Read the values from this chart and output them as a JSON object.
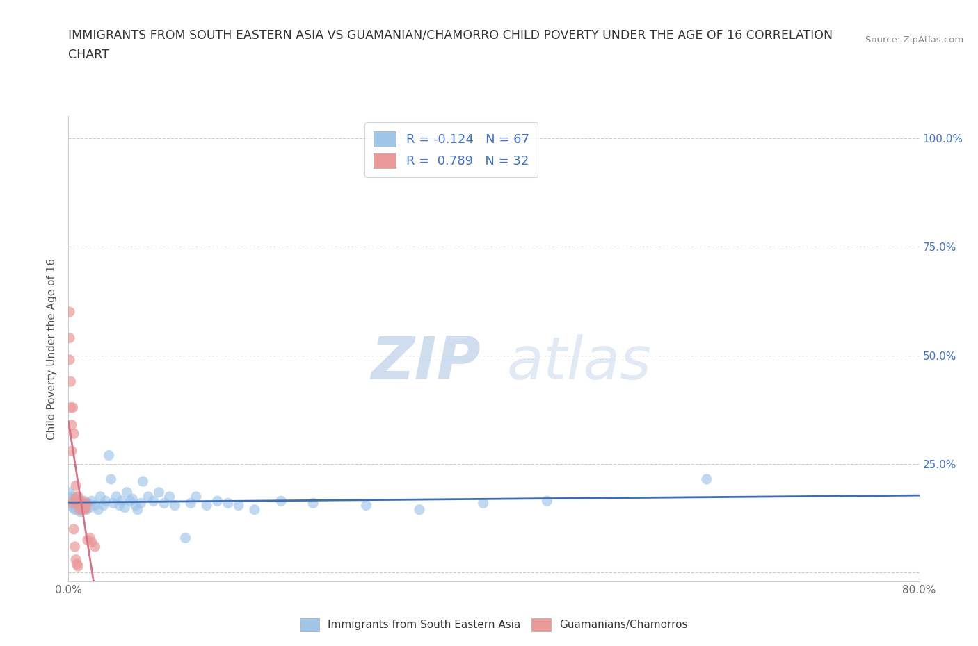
{
  "title_line1": "IMMIGRANTS FROM SOUTH EASTERN ASIA VS GUAMANIAN/CHAMORRO CHILD POVERTY UNDER THE AGE OF 16 CORRELATION",
  "title_line2": "CHART",
  "source": "Source: ZipAtlas.com",
  "ylabel": "Child Poverty Under the Age of 16",
  "xlim": [
    0.0,
    0.8
  ],
  "ylim": [
    -0.02,
    1.05
  ],
  "xticks": [
    0.0,
    0.1,
    0.2,
    0.3,
    0.4,
    0.5,
    0.6,
    0.7,
    0.8
  ],
  "xticklabels": [
    "0.0%",
    "",
    "",
    "",
    "",
    "",
    "",
    "",
    "80.0%"
  ],
  "yticks": [
    0.0,
    0.25,
    0.5,
    0.75,
    1.0
  ],
  "R_blue": -0.124,
  "N_blue": 67,
  "R_pink": 0.789,
  "N_pink": 32,
  "blue_color": "#9fc5e8",
  "pink_color": "#ea9999",
  "blue_line_color": "#3d6eb4",
  "pink_line_color": "#d4728a",
  "blue_scatter": [
    [
      0.001,
      0.185
    ],
    [
      0.002,
      0.17
    ],
    [
      0.002,
      0.155
    ],
    [
      0.003,
      0.165
    ],
    [
      0.003,
      0.175
    ],
    [
      0.004,
      0.15
    ],
    [
      0.004,
      0.16
    ],
    [
      0.005,
      0.155
    ],
    [
      0.005,
      0.17
    ],
    [
      0.006,
      0.165
    ],
    [
      0.006,
      0.145
    ],
    [
      0.007,
      0.175
    ],
    [
      0.007,
      0.155
    ],
    [
      0.008,
      0.16
    ],
    [
      0.008,
      0.145
    ],
    [
      0.009,
      0.15
    ],
    [
      0.01,
      0.165
    ],
    [
      0.011,
      0.14
    ],
    [
      0.012,
      0.155
    ],
    [
      0.013,
      0.16
    ],
    [
      0.014,
      0.15
    ],
    [
      0.015,
      0.165
    ],
    [
      0.016,
      0.155
    ],
    [
      0.017,
      0.145
    ],
    [
      0.018,
      0.16
    ],
    [
      0.02,
      0.15
    ],
    [
      0.022,
      0.165
    ],
    [
      0.025,
      0.155
    ],
    [
      0.028,
      0.145
    ],
    [
      0.03,
      0.175
    ],
    [
      0.033,
      0.155
    ],
    [
      0.035,
      0.165
    ],
    [
      0.038,
      0.27
    ],
    [
      0.04,
      0.215
    ],
    [
      0.042,
      0.16
    ],
    [
      0.045,
      0.175
    ],
    [
      0.048,
      0.155
    ],
    [
      0.05,
      0.165
    ],
    [
      0.053,
      0.15
    ],
    [
      0.055,
      0.185
    ],
    [
      0.058,
      0.165
    ],
    [
      0.06,
      0.17
    ],
    [
      0.063,
      0.155
    ],
    [
      0.065,
      0.145
    ],
    [
      0.068,
      0.16
    ],
    [
      0.07,
      0.21
    ],
    [
      0.075,
      0.175
    ],
    [
      0.08,
      0.165
    ],
    [
      0.085,
      0.185
    ],
    [
      0.09,
      0.16
    ],
    [
      0.095,
      0.175
    ],
    [
      0.1,
      0.155
    ],
    [
      0.11,
      0.08
    ],
    [
      0.115,
      0.16
    ],
    [
      0.12,
      0.175
    ],
    [
      0.13,
      0.155
    ],
    [
      0.14,
      0.165
    ],
    [
      0.15,
      0.16
    ],
    [
      0.16,
      0.155
    ],
    [
      0.175,
      0.145
    ],
    [
      0.2,
      0.165
    ],
    [
      0.23,
      0.16
    ],
    [
      0.28,
      0.155
    ],
    [
      0.33,
      0.145
    ],
    [
      0.39,
      0.16
    ],
    [
      0.45,
      0.165
    ],
    [
      0.6,
      0.215
    ]
  ],
  "pink_scatter": [
    [
      0.001,
      0.6
    ],
    [
      0.001,
      0.54
    ],
    [
      0.001,
      0.49
    ],
    [
      0.002,
      0.44
    ],
    [
      0.002,
      0.38
    ],
    [
      0.003,
      0.34
    ],
    [
      0.003,
      0.28
    ],
    [
      0.004,
      0.38
    ],
    [
      0.004,
      0.16
    ],
    [
      0.005,
      0.32
    ],
    [
      0.005,
      0.1
    ],
    [
      0.006,
      0.17
    ],
    [
      0.006,
      0.06
    ],
    [
      0.007,
      0.2
    ],
    [
      0.007,
      0.03
    ],
    [
      0.008,
      0.16
    ],
    [
      0.008,
      0.02
    ],
    [
      0.009,
      0.175
    ],
    [
      0.009,
      0.015
    ],
    [
      0.01,
      0.155
    ],
    [
      0.01,
      0.16
    ],
    [
      0.011,
      0.145
    ],
    [
      0.012,
      0.165
    ],
    [
      0.013,
      0.155
    ],
    [
      0.014,
      0.16
    ],
    [
      0.015,
      0.145
    ],
    [
      0.016,
      0.15
    ],
    [
      0.017,
      0.16
    ],
    [
      0.018,
      0.075
    ],
    [
      0.02,
      0.08
    ],
    [
      0.022,
      0.07
    ],
    [
      0.025,
      0.06
    ]
  ],
  "watermark_zip_color": "#c8d8ec",
  "watermark_atlas_color": "#c8d8ec"
}
